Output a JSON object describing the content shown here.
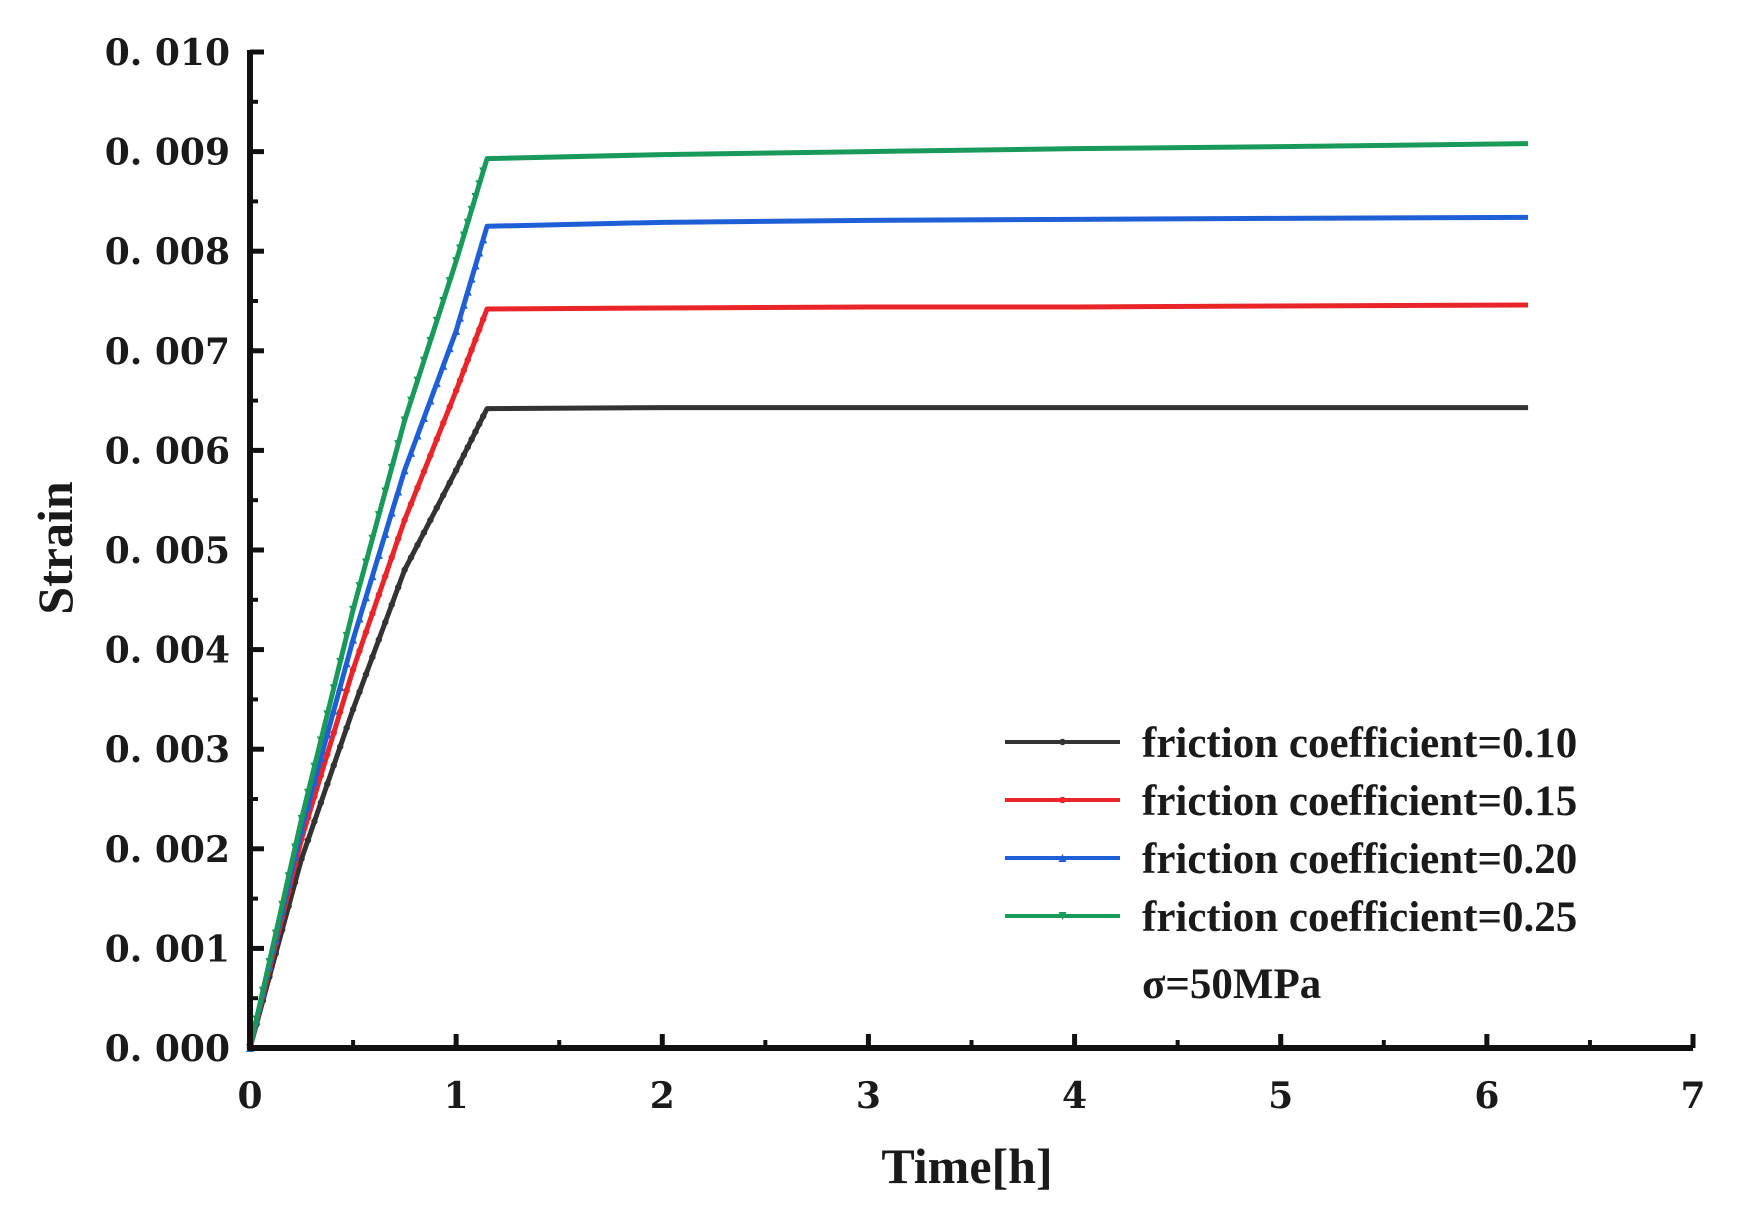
{
  "chart_data": {
    "type": "line",
    "xlabel": "Time[h]",
    "ylabel": "Strain",
    "xlim": [
      0,
      7
    ],
    "ylim": [
      0,
      0.01
    ],
    "x_ticks": [
      0,
      1,
      2,
      3,
      4,
      5,
      6,
      7
    ],
    "x_tick_labels": [
      "0",
      "1",
      "2",
      "3",
      "4",
      "5",
      "6",
      "7"
    ],
    "y_ticks": [
      0,
      0.001,
      0.002,
      0.003,
      0.004,
      0.005,
      0.006,
      0.007,
      0.008,
      0.009,
      0.01
    ],
    "y_tick_labels": [
      "0. 000",
      "0. 001",
      "0. 002",
      "0. 003",
      "0. 004",
      "0. 005",
      "0. 006",
      "0. 007",
      "0. 008",
      "0. 009",
      "0. 010"
    ],
    "grid": false,
    "legend_position": "bottom-right",
    "annotation": "σ=50MPa",
    "series": [
      {
        "name": "friction coefficient=0.10",
        "color": "#333333",
        "marker": "circle",
        "x": [
          0,
          0.25,
          0.5,
          0.75,
          1.0,
          1.15,
          2,
          3,
          4,
          5,
          6.2
        ],
        "y": [
          0,
          0.0019,
          0.0034,
          0.0048,
          0.0058,
          0.00642,
          0.00643,
          0.00643,
          0.00643,
          0.00643,
          0.00643
        ]
      },
      {
        "name": "friction coefficient=0.15",
        "color": "#e8262a",
        "marker": "circle",
        "x": [
          0,
          0.25,
          0.5,
          0.75,
          1.0,
          1.15,
          2,
          3,
          4,
          5,
          6.2
        ],
        "y": [
          0,
          0.0021,
          0.0038,
          0.0053,
          0.0066,
          0.00742,
          0.00743,
          0.00744,
          0.00744,
          0.00745,
          0.00746
        ]
      },
      {
        "name": "friction coefficient=0.20",
        "color": "#1f5fd6",
        "marker": "triangle-up",
        "x": [
          0,
          0.25,
          0.5,
          0.75,
          1.0,
          1.15,
          2,
          3,
          4,
          5,
          6.2
        ],
        "y": [
          0,
          0.0022,
          0.0041,
          0.0058,
          0.0072,
          0.00825,
          0.00829,
          0.00831,
          0.00832,
          0.00833,
          0.00834
        ]
      },
      {
        "name": "friction coefficient=0.25",
        "color": "#1a9a5a",
        "marker": "triangle-down",
        "x": [
          0,
          0.25,
          0.5,
          0.75,
          1.0,
          1.15,
          2,
          3,
          4,
          5,
          6.2
        ],
        "y": [
          0,
          0.0023,
          0.0044,
          0.0063,
          0.0079,
          0.00893,
          0.00897,
          0.009,
          0.00903,
          0.00905,
          0.00908
        ]
      }
    ]
  }
}
